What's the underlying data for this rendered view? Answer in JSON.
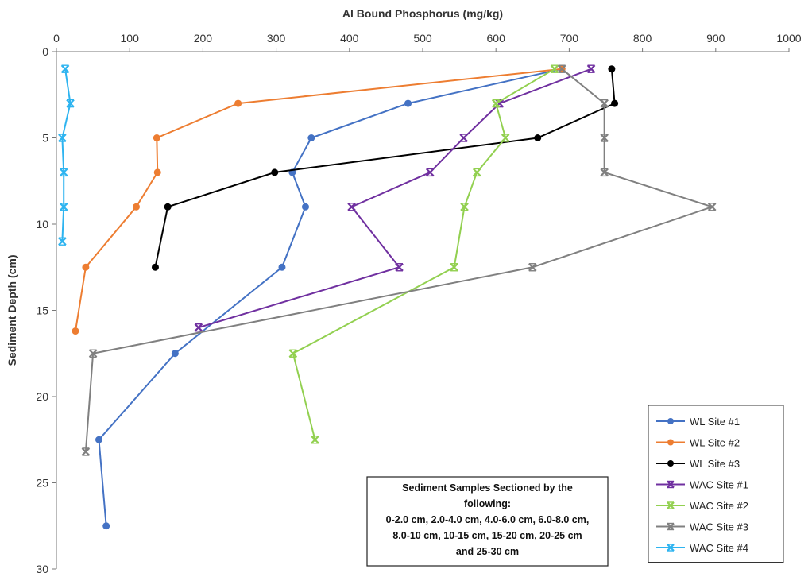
{
  "chart_data": {
    "type": "line",
    "xlabel": "Al Bound Phosphorus (mg/kg)",
    "ylabel": "Sediment Depth (cm)",
    "xlim": [
      0,
      1000
    ],
    "ylim": [
      0,
      30
    ],
    "y_inverted": true,
    "x_axis_position": "top",
    "x_ticks": [
      0,
      100,
      200,
      300,
      400,
      500,
      600,
      700,
      800,
      900,
      1000
    ],
    "y_ticks": [
      0,
      5,
      10,
      15,
      20,
      25,
      30
    ],
    "grid": false,
    "legend_position": "bottom-right",
    "series": [
      {
        "name": "WL Site #1",
        "color": "#4472C4",
        "marker": "circle",
        "points": [
          [
            690,
            1
          ],
          [
            480,
            3
          ],
          [
            348,
            5
          ],
          [
            322,
            7
          ],
          [
            340,
            9
          ],
          [
            308,
            12.5
          ],
          [
            162,
            17.5
          ],
          [
            58,
            22.5
          ],
          [
            68,
            27.5
          ]
        ]
      },
      {
        "name": "WL Site #2",
        "color": "#ED7D31",
        "marker": "circle",
        "points": [
          [
            690,
            1
          ],
          [
            248,
            3
          ],
          [
            137,
            5
          ],
          [
            138,
            7
          ],
          [
            109,
            9
          ],
          [
            40,
            12.5
          ],
          [
            26,
            16.2
          ]
        ]
      },
      {
        "name": "WL Site #3",
        "color": "#000000",
        "marker": "circle",
        "points": [
          [
            758,
            1
          ],
          [
            762,
            3
          ],
          [
            657,
            5
          ],
          [
            298,
            7
          ],
          [
            152,
            9
          ],
          [
            135,
            12.5
          ]
        ]
      },
      {
        "name": "WAC Site #1",
        "color": "#7030A0",
        "marker": "x",
        "points": [
          [
            730,
            1
          ],
          [
            605,
            3
          ],
          [
            556,
            5
          ],
          [
            510,
            7
          ],
          [
            403,
            9
          ],
          [
            468,
            12.5
          ],
          [
            194,
            16
          ]
        ]
      },
      {
        "name": "WAC Site #2",
        "color": "#92D050",
        "marker": "x",
        "points": [
          [
            680,
            1
          ],
          [
            600,
            3
          ],
          [
            613,
            5
          ],
          [
            574,
            7
          ],
          [
            557,
            9
          ],
          [
            543,
            12.5
          ],
          [
            323,
            17.5
          ],
          [
            353,
            22.5
          ]
        ]
      },
      {
        "name": "WAC Site #3",
        "color": "#808080",
        "marker": "x",
        "points": [
          [
            690,
            1
          ],
          [
            748,
            3
          ],
          [
            748,
            5
          ],
          [
            748,
            7
          ],
          [
            895,
            9
          ],
          [
            650,
            12.5
          ],
          [
            50,
            17.5
          ],
          [
            40,
            23.2
          ]
        ]
      },
      {
        "name": "WAC Site #4",
        "color": "#2EB4F0",
        "marker": "x",
        "points": [
          [
            12,
            1
          ],
          [
            19,
            3
          ],
          [
            8,
            5
          ],
          [
            10,
            7
          ],
          [
            10,
            9
          ],
          [
            8,
            11
          ]
        ]
      }
    ],
    "annotation": {
      "lines": [
        "Sediment Samples Sectioned by the",
        "following:",
        "0-2.0 cm, 2.0-4.0 cm, 4.0-6.0 cm, 6.0-8.0 cm,",
        "8.0-10 cm, 10-15 cm, 15-20 cm, 20-25 cm",
        "and 25-30 cm"
      ]
    }
  }
}
